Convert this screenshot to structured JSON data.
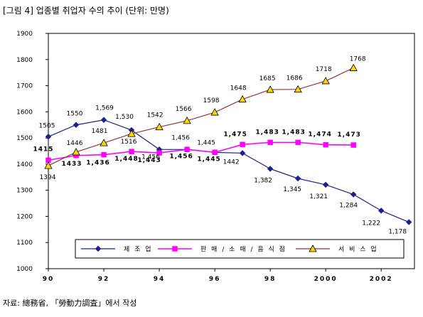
{
  "figure": {
    "title": "[그림 4] 업종별 취업자 수의 추이 (단위: 만명)",
    "source": "자료: 總務省, 「勞動力調査」에서 작성"
  },
  "colors": {
    "manufacturing": "#1f1f8c",
    "retail": "#ff00ff",
    "service": "#993333",
    "service_marker": "#ffd700"
  },
  "chart_data": {
    "type": "line",
    "title": "",
    "xlabel": "",
    "ylabel": "",
    "ylim": [
      1000,
      1900
    ],
    "yticks": [
      1000,
      1100,
      1200,
      1300,
      1400,
      1500,
      1600,
      1700,
      1800,
      1900
    ],
    "xlim": [
      1990,
      2003.2
    ],
    "xticks": [
      {
        "x": 1990,
        "label": "90"
      },
      {
        "x": 1992,
        "label": "92"
      },
      {
        "x": 1994,
        "label": "94"
      },
      {
        "x": 1996,
        "label": "96"
      },
      {
        "x": 1998,
        "label": "98"
      },
      {
        "x": 2000,
        "label": "2000"
      },
      {
        "x": 2002,
        "label": "2002"
      }
    ],
    "grid": false,
    "legend": "bottom",
    "series": [
      {
        "key": "manufacturing",
        "name": "제 조 업",
        "marker": "diamond",
        "x": [
          1990,
          1991,
          1992,
          1993,
          1994,
          1995,
          1996,
          1997,
          1998,
          1999,
          2000,
          2001,
          2002,
          2003
        ],
        "values": [
          1505,
          1550,
          1569,
          1530,
          1456,
          1456,
          1445,
          1442,
          1382,
          1345,
          1321,
          1284,
          1222,
          1178
        ],
        "labels": [
          "1505",
          "1550",
          "1,569",
          "1,530",
          "1,456",
          "1,456",
          "1,445",
          "1442",
          "1,382",
          "1,345",
          "1,321",
          "1,284",
          "1,222",
          "1,178"
        ]
      },
      {
        "key": "retail",
        "name": "판 매 / 소 매 / 음 식 점",
        "marker": "square",
        "x": [
          1990,
          1991,
          1992,
          1993,
          1994,
          1995,
          1996,
          1997,
          1998,
          1999,
          2000,
          2001
        ],
        "values": [
          1415,
          1433,
          1436,
          1448,
          1443,
          1456,
          1445,
          1475,
          1483,
          1483,
          1474,
          1473
        ],
        "labels": [
          "1415",
          "1433",
          "1,436",
          "1,448",
          "1,443",
          "1,456",
          "1,445",
          "1,475",
          "1,483",
          "1,483",
          "1,474",
          "1,473"
        ]
      },
      {
        "key": "service",
        "name": "서 비 스 업",
        "marker": "triangle",
        "x": [
          1990,
          1991,
          1992,
          1993,
          1994,
          1995,
          1996,
          1997,
          1998,
          1999,
          2000,
          2001
        ],
        "values": [
          1394,
          1446,
          1481,
          1516,
          1542,
          1566,
          1598,
          1648,
          1685,
          1686,
          1718,
          1768
        ],
        "labels": [
          "1394",
          "1446",
          "1481",
          "1516",
          "1542",
          "1566",
          "1598",
          "1648",
          "1685",
          "1686",
          "1718",
          "1768"
        ]
      }
    ]
  }
}
